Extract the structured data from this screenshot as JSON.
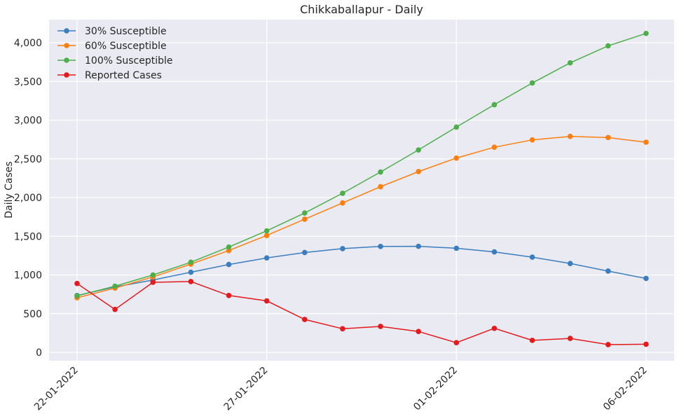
{
  "chart_data": {
    "type": "line",
    "title": "Chikkaballapur - Daily",
    "xlabel": "",
    "ylabel": "Daily Cases",
    "x": [
      "22-01-2022",
      "23-01-2022",
      "24-01-2022",
      "25-01-2022",
      "26-01-2022",
      "27-01-2022",
      "28-01-2022",
      "29-01-2022",
      "30-01-2022",
      "31-01-2022",
      "01-02-2022",
      "02-02-2022",
      "03-02-2022",
      "04-02-2022",
      "05-02-2022",
      "06-02-2022"
    ],
    "x_tick_labels": [
      "22-01-2022",
      "27-01-2022",
      "01-02-2022",
      "06-02-2022"
    ],
    "y_ticks": [
      0,
      500,
      1000,
      1500,
      2000,
      2500,
      3000,
      3500,
      4000
    ],
    "y_tick_labels": [
      "0",
      "500",
      "1,000",
      "1,500",
      "2,000",
      "2,500",
      "3,000",
      "3,500",
      "4,000"
    ],
    "ylim": [
      -100,
      4320
    ],
    "grid": true,
    "legend_position": "top-left",
    "series": [
      {
        "name": "30% Susceptible",
        "color": "#3a7ebf",
        "values": [
          735,
          845,
          935,
          1035,
          1135,
          1220,
          1290,
          1340,
          1368,
          1370,
          1345,
          1298,
          1230,
          1148,
          1050,
          955
        ]
      },
      {
        "name": "60% Susceptible",
        "color": "#ff7f0e",
        "values": [
          705,
          830,
          975,
          1140,
          1315,
          1510,
          1720,
          1930,
          2140,
          2335,
          2510,
          2650,
          2745,
          2790,
          2775,
          2715
        ]
      },
      {
        "name": "100% Susceptible",
        "color": "#4daf4a",
        "values": [
          730,
          855,
          1000,
          1165,
          1360,
          1570,
          1800,
          2055,
          2330,
          2615,
          2910,
          3200,
          3480,
          3740,
          3960,
          4120
        ]
      },
      {
        "name": "Reported Cases",
        "color": "#e41a1c",
        "values": [
          890,
          555,
          905,
          915,
          735,
          665,
          425,
          305,
          335,
          270,
          125,
          310,
          155,
          180,
          100,
          105
        ]
      }
    ]
  }
}
